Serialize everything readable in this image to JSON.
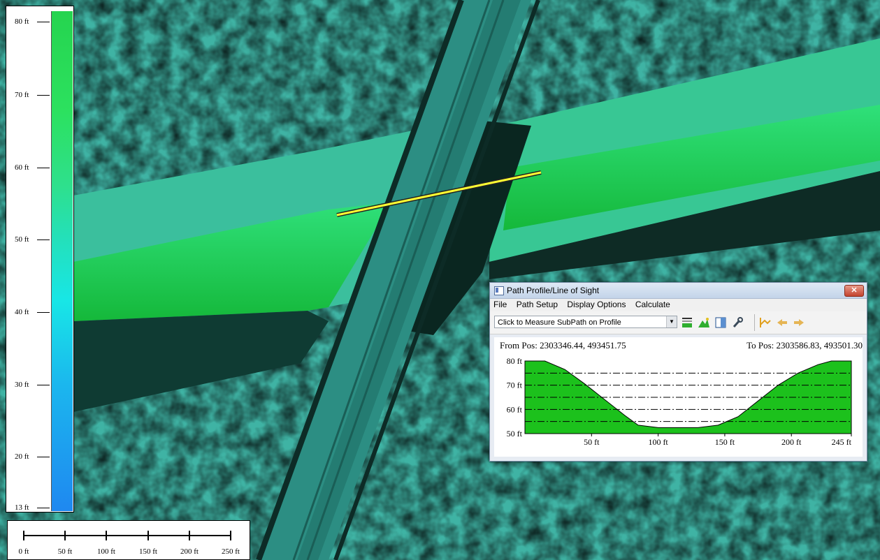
{
  "map": {
    "type": "elevation-shaded-relief",
    "elevation_legend": {
      "labels": [
        "80 ft",
        "70 ft",
        "60 ft",
        "50 ft",
        "40 ft",
        "30 ft",
        "20 ft",
        "13 ft"
      ]
    },
    "scale_bar": {
      "labels": [
        "0 ft",
        "50 ft",
        "100 ft",
        "150 ft",
        "200 ft",
        "250 ft"
      ]
    },
    "path_line_color": "#ffff33"
  },
  "profile_window": {
    "title": "Path Profile/Line of Sight",
    "close_label": "✕",
    "menu": [
      "File",
      "Path Setup",
      "Display Options",
      "Calculate"
    ],
    "mode_dropdown": "Click to Measure SubPath on Profile",
    "toolbar_icons": [
      "path-graph-icon",
      "terrain-icon",
      "split-view-icon",
      "wrench-icon",
      "line-of-sight-icon",
      "arrow-left-icon",
      "arrow-right-icon"
    ],
    "from_pos": "From Pos: 2303346.44, 493451.75",
    "to_pos": "To Pos: 2303586.83, 493501.30",
    "fill_color": "#1cc11c"
  },
  "chart_data": {
    "type": "area",
    "x": [
      0,
      15,
      30,
      45,
      60,
      75,
      85,
      100,
      115,
      130,
      145,
      160,
      175,
      190,
      205,
      220,
      230,
      245
    ],
    "values": [
      80,
      80,
      76.5,
      70.5,
      64,
      57.5,
      53.5,
      52.5,
      52.5,
      52.5,
      53.5,
      57,
      63.5,
      70,
      75,
      78.5,
      80,
      80
    ],
    "ylim": [
      50,
      80
    ],
    "xlim": [
      0,
      245
    ],
    "y_tick_labels": [
      "80 ft",
      "70 ft",
      "60 ft",
      "50 ft"
    ],
    "x_tick_labels": [
      "50 ft",
      "100 ft",
      "150 ft",
      "200 ft",
      "245 ft"
    ],
    "grid": true
  }
}
